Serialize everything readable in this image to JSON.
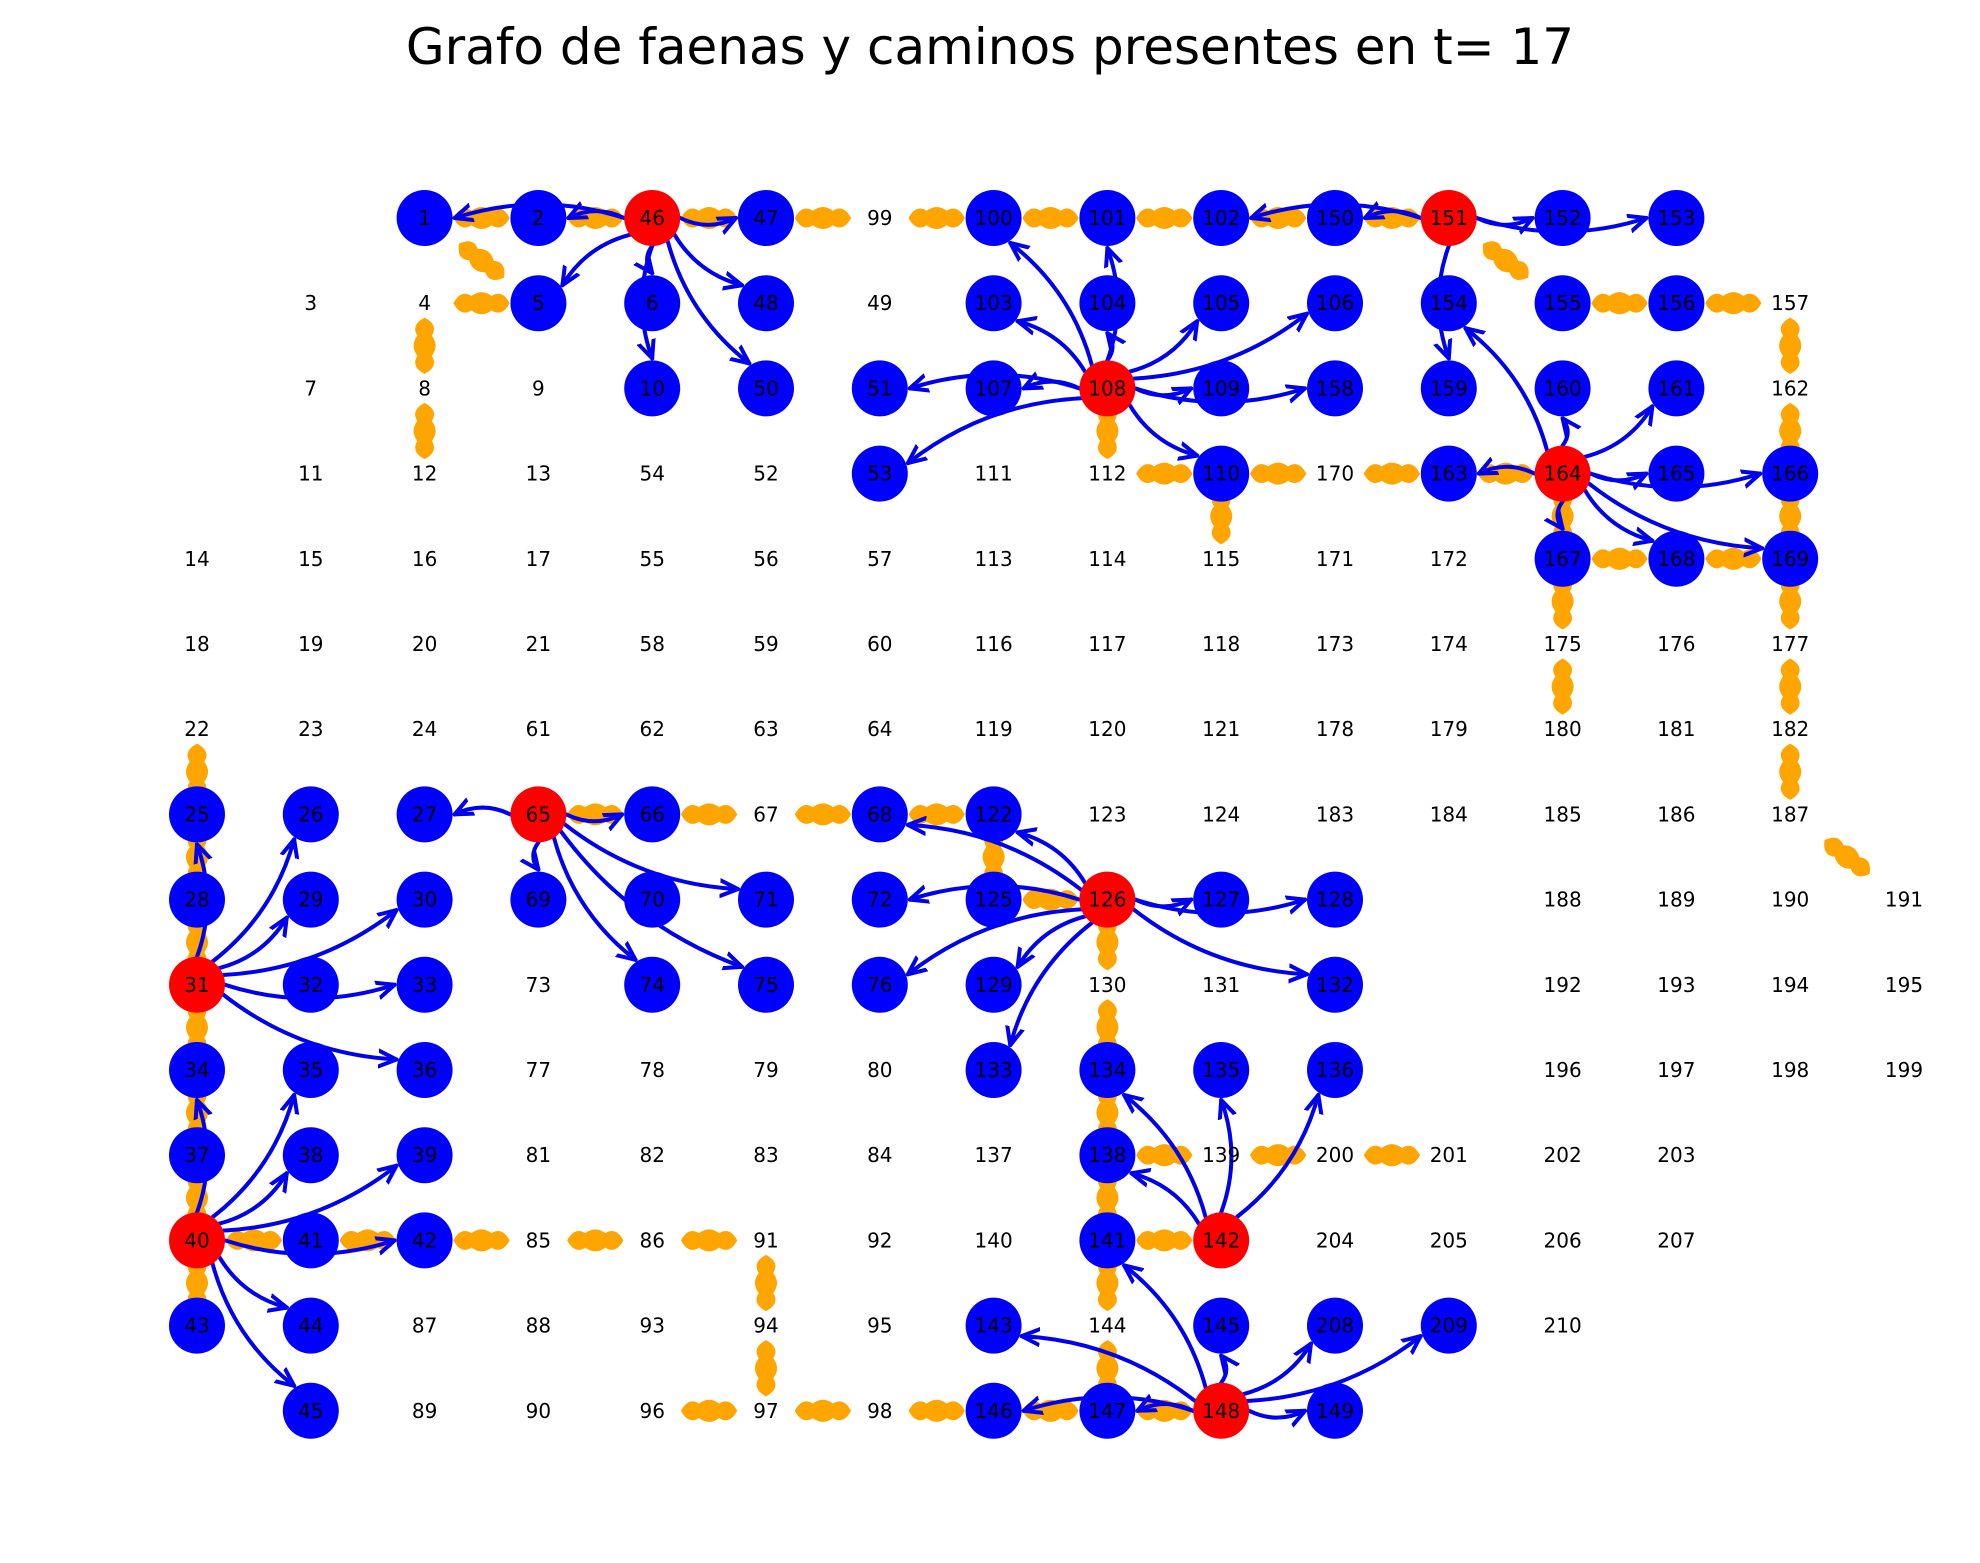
{
  "title": "Grafo de faenas y caminos presentes en t= 17",
  "colors": {
    "faena_activa": "#ff0000",
    "nodo_destino": "#0000ff",
    "camino": "#ffa500",
    "arco": "#0000ee",
    "fondo": "#ffffff"
  },
  "grid_rows": [
    [
      "",
      "",
      "1",
      "2",
      "46",
      "47",
      "99",
      "100",
      "101",
      "102",
      "150",
      "151",
      "152",
      "153"
    ],
    [
      "",
      "3",
      "4",
      "5",
      "6",
      "48",
      "49",
      "103",
      "104",
      "105",
      "106",
      "154",
      "155",
      "156",
      "157"
    ],
    [
      "",
      "7",
      "8",
      "9",
      "10",
      "50",
      "51",
      "107",
      "108",
      "109",
      "158",
      "159",
      "160",
      "161",
      "162"
    ],
    [
      "",
      "11",
      "12",
      "13",
      "54",
      "52",
      "53",
      "111",
      "112",
      "110",
      "170",
      "163",
      "164",
      "165",
      "166"
    ],
    [
      "14",
      "15",
      "16",
      "17",
      "55",
      "56",
      "57",
      "113",
      "114",
      "115",
      "171",
      "172",
      "167",
      "168",
      "169"
    ],
    [
      "18",
      "19",
      "20",
      "21",
      "58",
      "59",
      "60",
      "116",
      "117",
      "118",
      "173",
      "174",
      "175",
      "176",
      "177"
    ],
    [
      "22",
      "23",
      "24",
      "61",
      "62",
      "63",
      "64",
      "119",
      "120",
      "121",
      "178",
      "179",
      "180",
      "181",
      "182"
    ],
    [
      "25",
      "26",
      "27",
      "65",
      "66",
      "67",
      "68",
      "122",
      "123",
      "124",
      "183",
      "184",
      "185",
      "186",
      "187"
    ],
    [
      "28",
      "29",
      "30",
      "69",
      "70",
      "71",
      "72",
      "125",
      "126",
      "127",
      "128",
      "",
      "188",
      "189",
      "190",
      "191"
    ],
    [
      "31",
      "32",
      "33",
      "73",
      "74",
      "75",
      "76",
      "129",
      "130",
      "131",
      "132",
      "",
      "192",
      "193",
      "194",
      "195"
    ],
    [
      "34",
      "35",
      "36",
      "77",
      "78",
      "79",
      "80",
      "133",
      "134",
      "135",
      "136",
      "",
      "196",
      "197",
      "198",
      "199"
    ],
    [
      "37",
      "38",
      "39",
      "81",
      "82",
      "83",
      "84",
      "137",
      "138",
      "139",
      "200",
      "201",
      "202",
      "203"
    ],
    [
      "40",
      "41",
      "42",
      "85",
      "86",
      "91",
      "92",
      "140",
      "141",
      "142",
      "204",
      "205",
      "206",
      "207"
    ],
    [
      "43",
      "44",
      "87",
      "88",
      "93",
      "94",
      "95",
      "143",
      "144",
      "145",
      "208",
      "209",
      "210"
    ],
    [
      "",
      "45",
      "89",
      "90",
      "96",
      "97",
      "98",
      "146",
      "147",
      "148",
      "149"
    ]
  ],
  "active_nodes": [
    "46",
    "108",
    "151",
    "164",
    "65",
    "126",
    "31",
    "40",
    "142",
    "148"
  ],
  "target_nodes": [
    "1",
    "2",
    "47",
    "100",
    "101",
    "102",
    "150",
    "152",
    "153",
    "5",
    "6",
    "48",
    "103",
    "104",
    "105",
    "106",
    "154",
    "155",
    "156",
    "10",
    "50",
    "51",
    "107",
    "109",
    "158",
    "159",
    "160",
    "161",
    "53",
    "110",
    "163",
    "165",
    "166",
    "167",
    "168",
    "169",
    "25",
    "26",
    "27",
    "66",
    "68",
    "122",
    "28",
    "29",
    "30",
    "69",
    "70",
    "71",
    "72",
    "125",
    "127",
    "128",
    "32",
    "33",
    "74",
    "75",
    "76",
    "129",
    "132",
    "34",
    "35",
    "36",
    "133",
    "134",
    "135",
    "136",
    "37",
    "38",
    "39",
    "138",
    "41",
    "42",
    "141",
    "43",
    "44",
    "143",
    "145",
    "208",
    "209",
    "45",
    "146",
    "147",
    "149"
  ],
  "roads": [
    [
      "1",
      "2"
    ],
    [
      "2",
      "46"
    ],
    [
      "46",
      "47"
    ],
    [
      "47",
      "99"
    ],
    [
      "99",
      "100"
    ],
    [
      "100",
      "101"
    ],
    [
      "101",
      "102"
    ],
    [
      "102",
      "150"
    ],
    [
      "150",
      "151"
    ],
    [
      "1",
      "5"
    ],
    [
      "4",
      "5"
    ],
    [
      "4",
      "8"
    ],
    [
      "8",
      "12"
    ],
    [
      "151",
      "155"
    ],
    [
      "155",
      "156"
    ],
    [
      "156",
      "157"
    ],
    [
      "157",
      "162"
    ],
    [
      "162",
      "166"
    ],
    [
      "166",
      "169"
    ],
    [
      "168",
      "169"
    ],
    [
      "167",
      "168"
    ],
    [
      "164",
      "167"
    ],
    [
      "167",
      "175"
    ],
    [
      "175",
      "180"
    ],
    [
      "169",
      "177"
    ],
    [
      "177",
      "182"
    ],
    [
      "182",
      "187"
    ],
    [
      "187",
      "191"
    ],
    [
      "108",
      "112"
    ],
    [
      "112",
      "110"
    ],
    [
      "110",
      "170"
    ],
    [
      "170",
      "163"
    ],
    [
      "163",
      "164"
    ],
    [
      "110",
      "115"
    ],
    [
      "65",
      "66"
    ],
    [
      "66",
      "67"
    ],
    [
      "67",
      "68"
    ],
    [
      "68",
      "122"
    ],
    [
      "122",
      "125"
    ],
    [
      "125",
      "126"
    ],
    [
      "126",
      "130"
    ],
    [
      "22",
      "25"
    ],
    [
      "25",
      "28"
    ],
    [
      "28",
      "31"
    ],
    [
      "31",
      "34"
    ],
    [
      "34",
      "37"
    ],
    [
      "37",
      "40"
    ],
    [
      "40",
      "43"
    ],
    [
      "40",
      "41"
    ],
    [
      "41",
      "42"
    ],
    [
      "42",
      "85"
    ],
    [
      "85",
      "86"
    ],
    [
      "86",
      "91"
    ],
    [
      "91",
      "94"
    ],
    [
      "94",
      "97"
    ],
    [
      "96",
      "97"
    ],
    [
      "97",
      "98"
    ],
    [
      "98",
      "146"
    ],
    [
      "146",
      "147"
    ],
    [
      "147",
      "148"
    ],
    [
      "130",
      "134"
    ],
    [
      "134",
      "138"
    ],
    [
      "138",
      "141"
    ],
    [
      "141",
      "144"
    ],
    [
      "144",
      "147"
    ],
    [
      "138",
      "139"
    ],
    [
      "139",
      "200"
    ],
    [
      "200",
      "201"
    ],
    [
      "141",
      "142"
    ]
  ],
  "arcs": [
    [
      "46",
      "1"
    ],
    [
      "46",
      "2"
    ],
    [
      "46",
      "5"
    ],
    [
      "46",
      "6"
    ],
    [
      "46",
      "10"
    ],
    [
      "46",
      "48"
    ],
    [
      "46",
      "50"
    ],
    [
      "46",
      "47"
    ],
    [
      "108",
      "100"
    ],
    [
      "108",
      "101"
    ],
    [
      "108",
      "103"
    ],
    [
      "108",
      "104"
    ],
    [
      "108",
      "105"
    ],
    [
      "108",
      "106"
    ],
    [
      "108",
      "109"
    ],
    [
      "108",
      "158"
    ],
    [
      "108",
      "110"
    ],
    [
      "108",
      "107"
    ],
    [
      "108",
      "51"
    ],
    [
      "108",
      "53"
    ],
    [
      "151",
      "102"
    ],
    [
      "151",
      "150"
    ],
    [
      "151",
      "152"
    ],
    [
      "151",
      "153"
    ],
    [
      "151",
      "159"
    ],
    [
      "164",
      "154"
    ],
    [
      "164",
      "160"
    ],
    [
      "164",
      "161"
    ],
    [
      "164",
      "165"
    ],
    [
      "164",
      "166"
    ],
    [
      "164",
      "163"
    ],
    [
      "164",
      "167"
    ],
    [
      "164",
      "168"
    ],
    [
      "164",
      "169"
    ],
    [
      "65",
      "27"
    ],
    [
      "65",
      "66"
    ],
    [
      "65",
      "69"
    ],
    [
      "65",
      "71"
    ],
    [
      "65",
      "74"
    ],
    [
      "65",
      "75"
    ],
    [
      "126",
      "122"
    ],
    [
      "126",
      "68"
    ],
    [
      "126",
      "72"
    ],
    [
      "126",
      "76"
    ],
    [
      "126",
      "129"
    ],
    [
      "126",
      "133"
    ],
    [
      "126",
      "127"
    ],
    [
      "126",
      "128"
    ],
    [
      "126",
      "132"
    ],
    [
      "31",
      "25"
    ],
    [
      "31",
      "26"
    ],
    [
      "31",
      "29"
    ],
    [
      "31",
      "30"
    ],
    [
      "31",
      "33"
    ],
    [
      "31",
      "36"
    ],
    [
      "40",
      "34"
    ],
    [
      "40",
      "35"
    ],
    [
      "40",
      "38"
    ],
    [
      "40",
      "39"
    ],
    [
      "40",
      "42"
    ],
    [
      "40",
      "44"
    ],
    [
      "40",
      "45"
    ],
    [
      "142",
      "134"
    ],
    [
      "142",
      "138"
    ],
    [
      "142",
      "135"
    ],
    [
      "142",
      "136"
    ],
    [
      "148",
      "141"
    ],
    [
      "148",
      "143"
    ],
    [
      "148",
      "145"
    ],
    [
      "148",
      "146"
    ],
    [
      "148",
      "147"
    ],
    [
      "148",
      "149"
    ],
    [
      "148",
      "208"
    ],
    [
      "148",
      "209"
    ]
  ]
}
